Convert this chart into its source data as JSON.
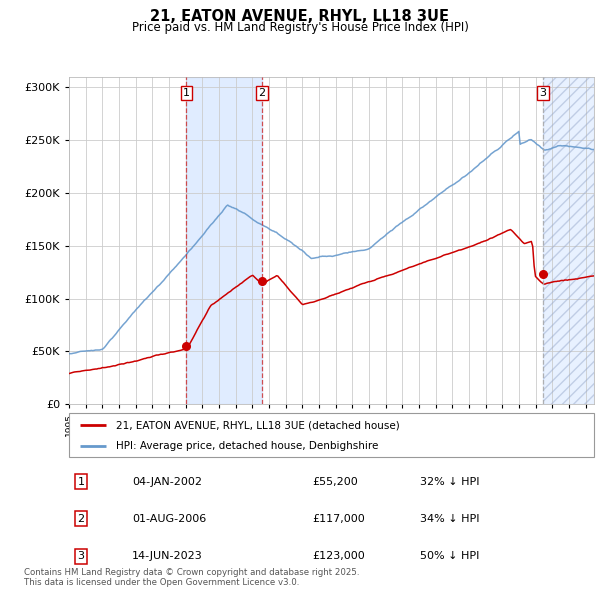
{
  "title": "21, EATON AVENUE, RHYL, LL18 3UE",
  "subtitle": "Price paid vs. HM Land Registry's House Price Index (HPI)",
  "legend_red": "21, EATON AVENUE, RHYL, LL18 3UE (detached house)",
  "legend_blue": "HPI: Average price, detached house, Denbighshire",
  "transactions": [
    {
      "num": 1,
      "date": "04-JAN-2002",
      "price": 55200,
      "pct": "32%",
      "dir": "↓",
      "x_year": 2002.04
    },
    {
      "num": 2,
      "date": "01-AUG-2006",
      "price": 117000,
      "pct": "34%",
      "dir": "↓",
      "x_year": 2006.58
    },
    {
      "num": 3,
      "date": "14-JUN-2023",
      "price": 123000,
      "pct": "50%",
      "dir": "↓",
      "x_year": 2023.45
    }
  ],
  "footnote": "Contains HM Land Registry data © Crown copyright and database right 2025.\nThis data is licensed under the Open Government Licence v3.0.",
  "ylim": [
    0,
    310000
  ],
  "xlim_start": 1995.0,
  "xlim_end": 2026.5,
  "red_color": "#cc0000",
  "blue_color": "#6699cc",
  "background_color": "#ffffff",
  "grid_color": "#cccccc"
}
